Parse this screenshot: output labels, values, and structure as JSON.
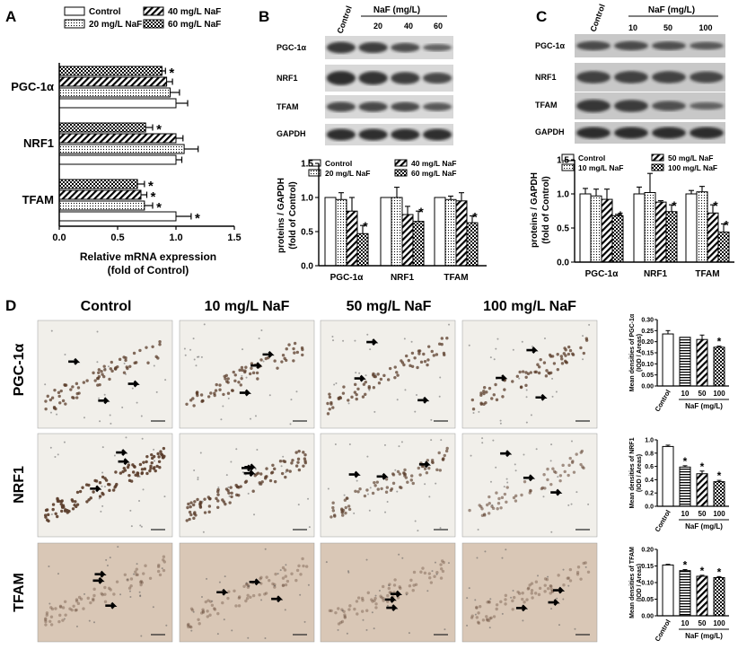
{
  "panel_letters": [
    "A",
    "B",
    "C",
    "D"
  ],
  "colors": {
    "ink": "#000000",
    "micro_bg": "#f1efea",
    "micro_tfam_bg": "#d9c7b6",
    "nucleus": "#5a3c2a",
    "band": "#2a2a2a"
  },
  "panelA": {
    "legend": [
      "Control",
      "20 mg/L NaF",
      "40 mg/L NaF",
      "60 mg/L NaF"
    ],
    "genes": [
      "PGC-1α",
      "NRF1",
      "TFAM"
    ],
    "xticks": [
      "0.0",
      "0.5",
      "1.0",
      "1.5"
    ],
    "xlabel": [
      "Relative mRNA expression",
      "(fold of Control)"
    ],
    "star": "*"
  },
  "panelB": {
    "header": "NaF (mg/L)",
    "lanes": [
      "Control",
      "20",
      "40",
      "60"
    ],
    "blots": [
      "PGC-1α",
      "NRF1",
      "TFAM",
      "GAPDH"
    ],
    "legend": [
      "Control",
      "20 mg/L NaF",
      "40 mg/L NaF",
      "60 mg/L NaF"
    ],
    "ylabel": [
      "proteins / GAPDH",
      "(fold of Control)"
    ],
    "yticks": [
      "0.0",
      "0.5",
      "1.0",
      "1.5"
    ],
    "groups": [
      "PGC-1α",
      "NRF1",
      "TFAM"
    ],
    "star": "*"
  },
  "panelC": {
    "header": "NaF (mg/L)",
    "lanes": [
      "Control",
      "10",
      "50",
      "100"
    ],
    "blots": [
      "PGC-1α",
      "NRF1",
      "TFAM",
      "GAPDH"
    ],
    "legend": [
      "Control",
      "10 mg/L NaF",
      "50 mg/L NaF",
      "100 mg/L NaF"
    ],
    "ylabel": [
      "proteins / GAPDH",
      "(fold of Control)"
    ],
    "yticks": [
      "0.0",
      "0.5",
      "1.0",
      "1.5"
    ],
    "groups": [
      "PGC-1α",
      "NRF1",
      "TFAM"
    ],
    "star": "*"
  },
  "panelD": {
    "col_headers": [
      "Control",
      "10 mg/L NaF",
      "50 mg/L NaF",
      "100 mg/L NaF"
    ],
    "row_labels": [
      "PGC-1α",
      "NRF1",
      "TFAM"
    ],
    "small_charts": [
      {
        "ylabel": [
          "Mean densities of PGC-1α",
          "(IOD / Areas)"
        ],
        "yticks": [
          "0.00",
          "0.05",
          "0.10",
          "0.15",
          "0.20",
          "0.25",
          "0.30"
        ],
        "xcats": [
          "Control",
          "10",
          "50",
          "100"
        ],
        "xlabel": "NaF (mg/L)"
      },
      {
        "ylabel": [
          "Mean densities of NRF1",
          "(IOD / Areas)"
        ],
        "yticks": [
          "0.0",
          "0.2",
          "0.4",
          "0.6",
          "0.8",
          "1.0"
        ],
        "xcats": [
          "Control",
          "10",
          "50",
          "100"
        ],
        "xlabel": "NaF (mg/L)"
      },
      {
        "ylabel": [
          "Mean densities of TFAM",
          "(IOD / Areas)"
        ],
        "yticks": [
          "0.00",
          "0.05",
          "0.10",
          "0.15",
          "0.20"
        ],
        "xcats": [
          "Control",
          "10",
          "50",
          "100"
        ],
        "xlabel": "NaF (mg/L)"
      }
    ],
    "star": "*"
  },
  "chart_data": [
    {
      "type": "bar",
      "panel": "A",
      "orientation": "horizontal",
      "categories": [
        "PGC-1α",
        "NRF1",
        "TFAM"
      ],
      "series": [
        {
          "name": "Control",
          "values": [
            1.0,
            1.0,
            1.0
          ],
          "errors": [
            0.1,
            0.05,
            0.13
          ]
        },
        {
          "name": "20 mg/L NaF",
          "values": [
            0.95,
            1.07,
            0.73
          ],
          "errors": [
            0.08,
            0.12,
            0.07
          ]
        },
        {
          "name": "40 mg/L NaF",
          "values": [
            0.92,
            1.0,
            0.7
          ],
          "errors": [
            0.05,
            0.06,
            0.05
          ]
        },
        {
          "name": "60 mg/L NaF",
          "values": [
            0.88,
            0.74,
            0.67
          ],
          "errors": [
            0.03,
            0.06,
            0.06
          ]
        }
      ],
      "significant": [
        [
          false,
          false,
          true
        ],
        [
          false,
          false,
          true
        ],
        [
          false,
          false,
          true
        ],
        [
          true,
          true,
          true
        ]
      ],
      "xlim": [
        0,
        1.5
      ],
      "xlabel": "Relative mRNA expression (fold of Control)"
    },
    {
      "type": "bar",
      "panel": "B",
      "categories": [
        "PGC-1α",
        "NRF1",
        "TFAM"
      ],
      "series": [
        {
          "name": "Control",
          "values": [
            1.0,
            1.0,
            1.0
          ],
          "errors": [
            0.0,
            0.0,
            0.0
          ]
        },
        {
          "name": "20 mg/L NaF",
          "values": [
            0.97,
            1.0,
            0.97
          ],
          "errors": [
            0.1,
            0.15,
            0.05
          ]
        },
        {
          "name": "40 mg/L NaF",
          "values": [
            0.8,
            0.75,
            0.95
          ],
          "errors": [
            0.2,
            0.12,
            0.12
          ]
        },
        {
          "name": "60 mg/L NaF",
          "values": [
            0.47,
            0.65,
            0.63
          ],
          "errors": [
            0.12,
            0.15,
            0.1
          ]
        }
      ],
      "significant": [
        [
          false,
          false,
          false
        ],
        [
          false,
          false,
          false
        ],
        [
          false,
          false,
          false
        ],
        [
          true,
          true,
          true
        ]
      ],
      "ylim": [
        0,
        1.5
      ],
      "ylabel": "proteins / GAPDH (fold of Control)"
    },
    {
      "type": "bar",
      "panel": "C",
      "categories": [
        "PGC-1α",
        "NRF1",
        "TFAM"
      ],
      "series": [
        {
          "name": "Control",
          "values": [
            1.0,
            1.0,
            1.0
          ],
          "errors": [
            0.08,
            0.1,
            0.05
          ]
        },
        {
          "name": "10 mg/L NaF",
          "values": [
            0.97,
            1.02,
            1.03
          ],
          "errors": [
            0.1,
            0.28,
            0.08
          ]
        },
        {
          "name": "50 mg/L NaF",
          "values": [
            0.92,
            0.88,
            0.72
          ],
          "errors": [
            0.15,
            0.02,
            0.12
          ]
        },
        {
          "name": "100 mg/L NaF",
          "values": [
            0.68,
            0.74,
            0.44
          ],
          "errors": [
            0.02,
            0.1,
            0.12
          ]
        }
      ],
      "significant": [
        [
          false,
          false,
          false
        ],
        [
          false,
          false,
          false
        ],
        [
          false,
          false,
          true
        ],
        [
          true,
          true,
          true
        ]
      ],
      "ylim": [
        0,
        1.5
      ],
      "ylabel": "proteins / GAPDH (fold of Control)"
    },
    {
      "type": "bar",
      "panel": "D-PGC-1α",
      "categories": [
        "Control",
        "10",
        "50",
        "100"
      ],
      "values": [
        0.235,
        0.22,
        0.21,
        0.175
      ],
      "errors": [
        0.015,
        0.0,
        0.02,
        0.005
      ],
      "significant": [
        false,
        false,
        false,
        true
      ],
      "ylim": [
        0,
        0.3
      ],
      "xlabel": "NaF (mg/L)"
    },
    {
      "type": "bar",
      "panel": "D-NRF1",
      "categories": [
        "Control",
        "10",
        "50",
        "100"
      ],
      "values": [
        0.9,
        0.59,
        0.49,
        0.37
      ],
      "errors": [
        0.02,
        0.02,
        0.04,
        0.02
      ],
      "significant": [
        false,
        true,
        true,
        true
      ],
      "ylim": [
        0,
        1.0
      ],
      "xlabel": "NaF (mg/L)"
    },
    {
      "type": "bar",
      "panel": "D-TFAM",
      "categories": [
        "Control",
        "10",
        "50",
        "100"
      ],
      "values": [
        0.153,
        0.136,
        0.119,
        0.115
      ],
      "errors": [
        0.002,
        0.003,
        0.003,
        0.003
      ],
      "significant": [
        false,
        true,
        true,
        true
      ],
      "ylim": [
        0,
        0.2
      ],
      "xlabel": "NaF (mg/L)"
    }
  ]
}
